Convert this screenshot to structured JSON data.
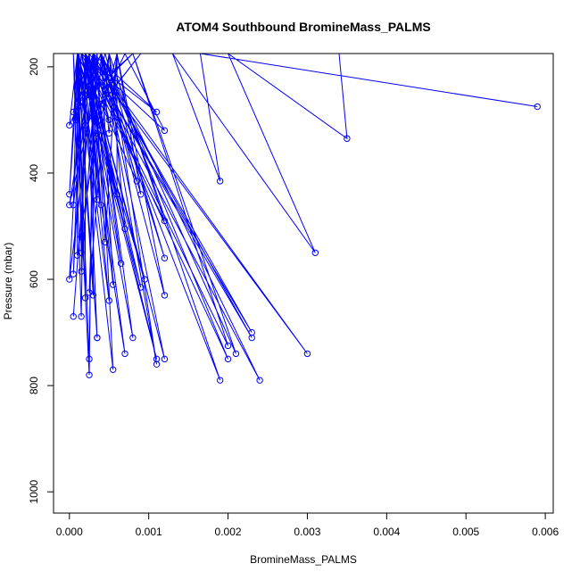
{
  "chart_data": {
    "type": "scatter",
    "title": "ATOM4 Southbound BromineMass_PALMS",
    "xlabel": "BromineMass_PALMS",
    "ylabel": "Pressure (mbar)",
    "xlim": [
      -0.0002,
      0.0061
    ],
    "ylim": [
      1040,
      175
    ],
    "y_reversed": true,
    "x_ticks": [
      0,
      0.001,
      0.002,
      0.003,
      0.004,
      0.005,
      0.006
    ],
    "x_tick_labels": [
      "0.000",
      "0.001",
      "0.002",
      "0.003",
      "0.004",
      "0.005",
      "0.006"
    ],
    "y_ticks": [
      200,
      400,
      600,
      800,
      1000
    ],
    "y_tick_labels": [
      "200",
      "400",
      "600",
      "800",
      "1000"
    ],
    "grid": false,
    "line_color": "#0000ff",
    "series": [
      {
        "points": [
          [
            0.0059,
            275
          ],
          [
            0.00165,
            175
          ],
          [
            0.0019,
            415
          ],
          [
            0.0013,
            175
          ],
          [
            0.0031,
            550
          ],
          [
            0.002,
            175
          ],
          [
            0.0035,
            335
          ],
          [
            0.0034,
            175
          ],
          [
            0.0003,
            175
          ],
          [
            0.0011,
            285
          ],
          [
            0.00015,
            175
          ],
          [
            0.0012,
            320
          ],
          [
            0.0007,
            175
          ],
          [
            0.0004,
            270
          ],
          [
            0.0009,
            175
          ],
          [
            0.0002,
            310
          ],
          [
            0.0002,
            175
          ],
          [
            0.0005,
            300
          ],
          [
            0.0003,
            175
          ],
          [
            0.0001,
            270
          ],
          [
            0.0008,
            175
          ],
          [
            5e-05,
            285
          ],
          [
            0.00025,
            175
          ],
          [
            8e-05,
            300
          ],
          [
            0.0004,
            175
          ],
          [
            0.0005,
            325
          ],
          [
            0.0006,
            175
          ],
          [
            0.00035,
            325
          ],
          [
            0.0004,
            175
          ],
          [
            0.0,
            310
          ],
          [
            0.0001,
            175
          ],
          [
            0.00085,
            415
          ],
          [
            0.0004,
            175
          ],
          [
            0.0009,
            440
          ],
          [
            0.0006,
            175
          ],
          [
            0.0006,
            440
          ],
          [
            0.00015,
            175
          ],
          [
            0.0012,
            490
          ],
          [
            0.0005,
            175
          ],
          [
            0.0007,
            505
          ],
          [
            0.0002,
            175
          ],
          [
            0.0004,
            460
          ],
          [
            0.00025,
            175
          ],
          [
            0.00035,
            450
          ],
          [
            0.00012,
            175
          ],
          [
            0.0,
            440
          ],
          [
            0.0001,
            175
          ],
          [
            5e-05,
            460
          ],
          [
            0.0003,
            175
          ],
          [
            0.0,
            460
          ],
          [
            0.00045,
            175
          ],
          [
            0.0012,
            560
          ],
          [
            0.0004,
            175
          ],
          [
            0.0012,
            630
          ],
          [
            0.0006,
            175
          ],
          [
            0.00045,
            530
          ],
          [
            0.0003,
            175
          ],
          [
            0.00065,
            570
          ],
          [
            0.0002,
            175
          ],
          [
            0.00015,
            520
          ],
          [
            0.0001,
            175
          ],
          [
            0.0005,
            640
          ],
          [
            0.0002,
            175
          ],
          [
            0.0009,
            615
          ],
          [
            0.0001,
            175
          ],
          [
            0.00015,
            550
          ],
          [
            0.0001,
            175
          ],
          [
            0.0001,
            555
          ],
          [
            0.0005,
            175
          ],
          [
            0.00025,
            625
          ],
          [
            0.00035,
            175
          ],
          [
            0.0,
            600
          ],
          [
            0.00015,
            175
          ],
          [
            5e-05,
            590
          ],
          [
            0.0002,
            175
          ],
          [
            0.00015,
            585
          ],
          [
            0.00035,
            175
          ],
          [
            0.00055,
            770
          ],
          [
            0.0001,
            175
          ],
          [
            0.00095,
            600
          ],
          [
            0.0002,
            175
          ],
          [
            0.0012,
            750
          ],
          [
            0.0004,
            175
          ],
          [
            0.0011,
            760
          ],
          [
            0.0005,
            175
          ],
          [
            0.0019,
            790
          ],
          [
            0.0003,
            175
          ],
          [
            0.0023,
            700
          ],
          [
            0.0002,
            175
          ],
          [
            0.002,
            725
          ],
          [
            0.0008,
            175
          ],
          [
            0.0021,
            740
          ],
          [
            0.0004,
            175
          ],
          [
            0.002,
            750
          ],
          [
            0.0002,
            175
          ],
          [
            0.003,
            740
          ],
          [
            0.00025,
            175
          ],
          [
            0.00055,
            610
          ],
          [
            0.0004,
            175
          ],
          [
            0.0024,
            790
          ],
          [
            0.0002,
            175
          ],
          [
            0.0023,
            710
          ],
          [
            0.0003,
            175
          ],
          [
            0.0008,
            710
          ],
          [
            0.00015,
            175
          ],
          [
            0.0011,
            750
          ],
          [
            0.0001,
            175
          ],
          [
            0.0007,
            740
          ],
          [
            0.0002,
            175
          ],
          [
            0.0002,
            635
          ],
          [
            0.0001,
            175
          ],
          [
            0.00035,
            710
          ],
          [
            0.0001,
            175
          ],
          [
            0.00025,
            750
          ],
          [
            0.0003,
            175
          ],
          [
            0.0003,
            630
          ],
          [
            0.0001,
            175
          ],
          [
            0.00035,
            710
          ],
          [
            0.0002,
            175
          ],
          [
            0.00015,
            670
          ],
          [
            5e-05,
            175
          ],
          [
            0.00025,
            780
          ],
          [
            0.0003,
            175
          ],
          [
            5e-05,
            670
          ]
        ]
      }
    ]
  }
}
